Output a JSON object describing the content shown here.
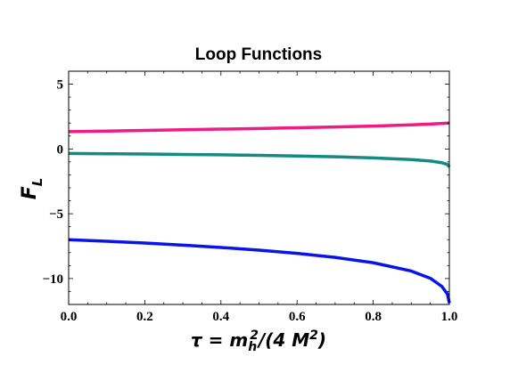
{
  "chart_data": {
    "type": "line",
    "title": "Loop Functions",
    "ylabel": {
      "main": "F",
      "sub": "L"
    },
    "xlabel": {
      "parts": [
        {
          "text": "τ = m",
          "style": "normal"
        },
        {
          "text": "h",
          "style": "sub"
        },
        {
          "text": "2",
          "style": "sup"
        },
        {
          "text": "/(4 M",
          "style": "normal"
        },
        {
          "text": "2",
          "style": "sup"
        },
        {
          "text": ")",
          "style": "normal"
        }
      ]
    },
    "xlim": [
      0,
      1
    ],
    "ylim": [
      -12,
      6
    ],
    "xticks": [
      {
        "value": 0.0,
        "label": "0.0"
      },
      {
        "value": 0.2,
        "label": "0.2"
      },
      {
        "value": 0.4,
        "label": "0.4"
      },
      {
        "value": 0.6,
        "label": "0.6"
      },
      {
        "value": 0.8,
        "label": "0.8"
      },
      {
        "value": 1.0,
        "label": "1.0"
      }
    ],
    "yticks": [
      {
        "value": 5,
        "label": "5"
      },
      {
        "value": 0,
        "label": "0"
      },
      {
        "value": -5,
        "label": "−5"
      },
      {
        "value": -10,
        "label": "−10"
      }
    ],
    "grid": false,
    "series": [
      {
        "color": "#ee1c84",
        "x": [
          0,
          0.1,
          0.2,
          0.3,
          0.4,
          0.5,
          0.6,
          0.7,
          0.8,
          0.9,
          0.95,
          1.0
        ],
        "y": [
          1.34,
          1.38,
          1.43,
          1.48,
          1.53,
          1.58,
          1.64,
          1.7,
          1.77,
          1.86,
          1.92,
          2.0
        ]
      },
      {
        "color": "#148a80",
        "x": [
          0,
          0.1,
          0.2,
          0.3,
          0.4,
          0.5,
          0.6,
          0.7,
          0.8,
          0.9,
          0.95,
          0.98,
          0.995,
          1.0
        ],
        "y": [
          -0.35,
          -0.37,
          -0.39,
          -0.42,
          -0.45,
          -0.49,
          -0.54,
          -0.6,
          -0.69,
          -0.82,
          -0.93,
          -1.06,
          -1.2,
          -1.4
        ]
      },
      {
        "color": "#0a14e8",
        "x": [
          0,
          0.1,
          0.2,
          0.3,
          0.4,
          0.5,
          0.6,
          0.7,
          0.8,
          0.9,
          0.95,
          0.98,
          0.995,
          1.0
        ],
        "y": [
          -7.0,
          -7.12,
          -7.26,
          -7.42,
          -7.6,
          -7.81,
          -8.06,
          -8.37,
          -8.78,
          -9.42,
          -9.98,
          -10.6,
          -11.2,
          -11.9
        ]
      }
    ]
  }
}
